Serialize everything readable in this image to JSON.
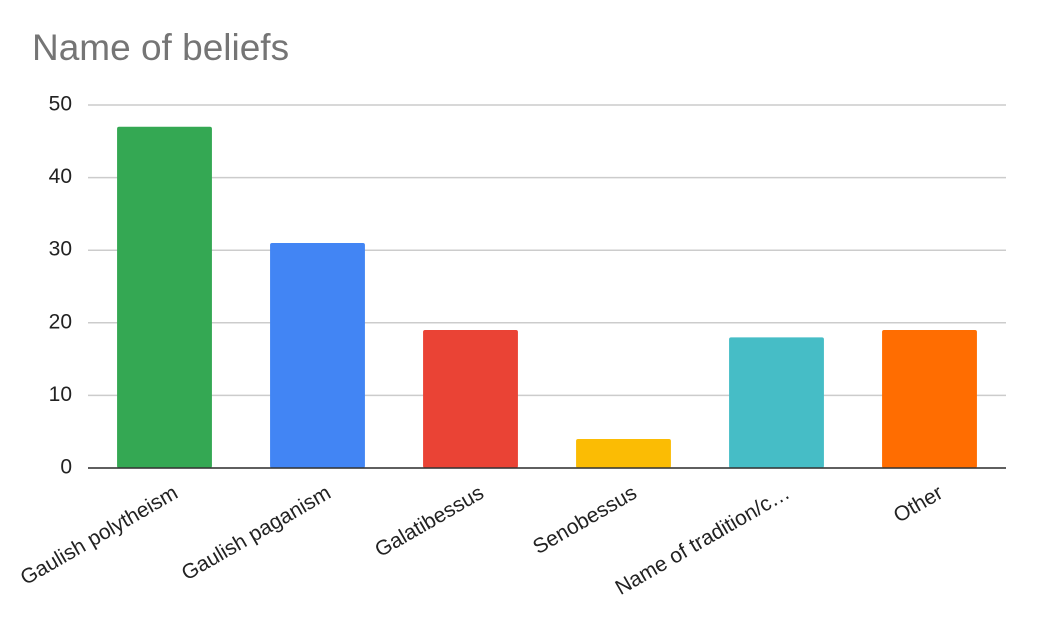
{
  "chart_data": {
    "type": "bar",
    "title": "Name of beliefs",
    "categories": [
      "Gaulish polytheism",
      "Gaulish paganism",
      "Galatibessus",
      "Senobessus",
      "Name of tradition/c…",
      "Other"
    ],
    "values": [
      47,
      31,
      19,
      4,
      18,
      19
    ],
    "colors": [
      "#34a853",
      "#4285f4",
      "#ea4335",
      "#fbbc04",
      "#46bdc6",
      "#ff6d01"
    ],
    "ylim": [
      0,
      50
    ],
    "yticks": [
      0,
      10,
      20,
      30,
      40,
      50
    ],
    "grid": true
  }
}
